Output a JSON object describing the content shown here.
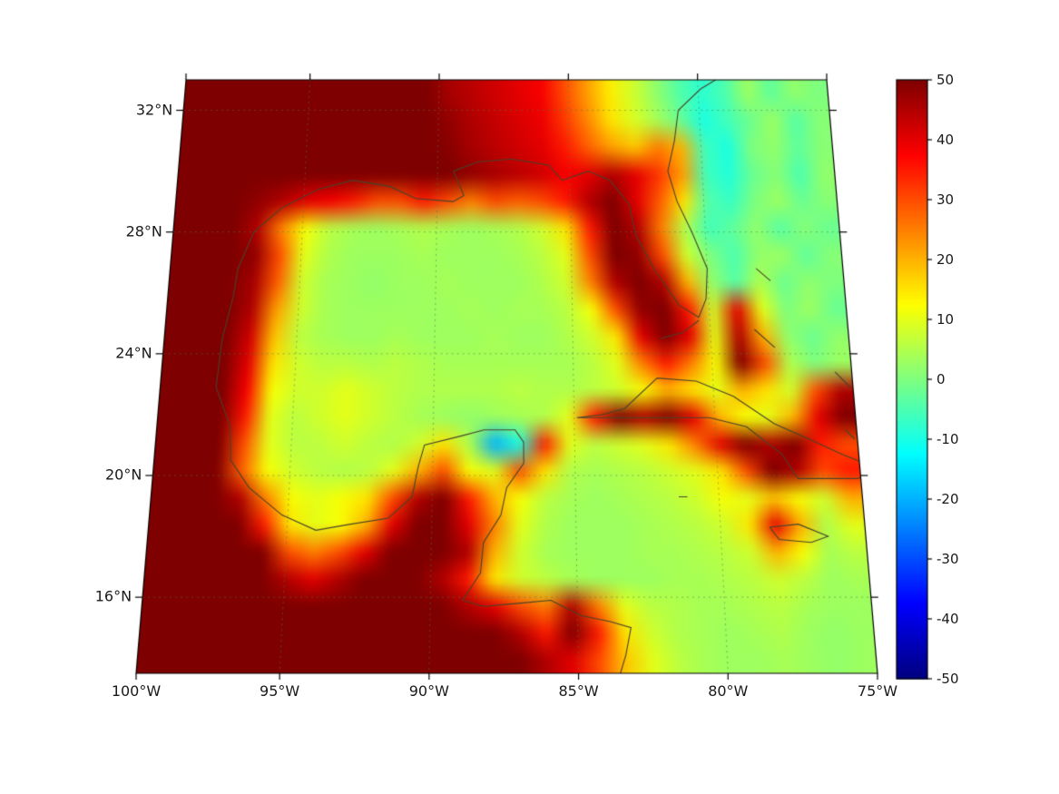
{
  "figure": {
    "background": "#ffffff"
  },
  "chart_data": {
    "type": "heatmap",
    "title": "",
    "colormap": "jet",
    "region": "Gulf of Mexico and Caribbean",
    "extent": {
      "lon_min": -99.8,
      "lon_max": -75.0,
      "lat_min": 13.5,
      "lat_max": 33.0
    },
    "x_axis": {
      "tick_labels": [
        "100°W",
        "95°W",
        "90°W",
        "85°W",
        "80°W",
        "75°W"
      ],
      "tick_values": [
        -100,
        -95,
        -90,
        -85,
        -80,
        -75
      ]
    },
    "y_axis": {
      "tick_labels": [
        "32°N",
        "28°N",
        "24°N",
        "20°N",
        "16°N"
      ],
      "tick_values": [
        32,
        28,
        24,
        20,
        16
      ]
    },
    "grid": {
      "lons": [
        -95,
        -90,
        -85,
        -80
      ],
      "lats": [
        16,
        20,
        24,
        28,
        32
      ],
      "style": "dashed"
    },
    "colorbar": {
      "min": -50,
      "max": 50,
      "tick_labels": [
        "50",
        "40",
        "30",
        "20",
        "10",
        "0",
        "-10",
        "-20",
        "-30",
        "-40",
        "-50"
      ],
      "tick_values": [
        50,
        40,
        30,
        20,
        10,
        0,
        -10,
        -20,
        -30,
        -40,
        -50
      ]
    },
    "grid_values": {
      "ncols": 28,
      "nrows": 22,
      "values": [
        [
          50,
          50,
          50,
          50,
          50,
          50,
          50,
          50,
          50,
          50,
          50,
          46,
          44,
          42,
          40,
          38,
          30,
          22,
          14,
          8,
          2,
          -4,
          -8,
          -5,
          3,
          -3,
          2,
          0
        ],
        [
          50,
          50,
          50,
          50,
          50,
          50,
          50,
          50,
          50,
          50,
          50,
          48,
          45,
          43,
          41,
          39,
          32,
          24,
          15,
          9,
          4,
          -2,
          -10,
          -6,
          -2,
          3,
          -4,
          1
        ],
        [
          50,
          50,
          50,
          50,
          50,
          50,
          50,
          50,
          50,
          50,
          50,
          49,
          46,
          44,
          42,
          40,
          35,
          28,
          22,
          18,
          25,
          20,
          -6,
          -10,
          0,
          2,
          -3,
          1
        ],
        [
          50,
          50,
          50,
          50,
          50,
          50,
          50,
          50,
          50,
          50,
          50,
          50,
          48,
          46,
          44,
          42,
          38,
          40,
          45,
          40,
          32,
          22,
          -6,
          -9,
          -2,
          1,
          -5,
          2
        ],
        [
          50,
          50,
          50,
          48,
          45,
          40,
          38,
          35,
          30,
          30,
          35,
          30,
          25,
          30,
          28,
          30,
          35,
          45,
          50,
          40,
          28,
          15,
          -4,
          -7,
          0,
          3,
          -2,
          1
        ],
        [
          50,
          50,
          50,
          45,
          25,
          12,
          6,
          4,
          3,
          4,
          5,
          4,
          3,
          4,
          5,
          8,
          15,
          35,
          50,
          45,
          25,
          5,
          -6,
          -3,
          2,
          -4,
          1,
          -2
        ],
        [
          50,
          50,
          50,
          48,
          30,
          10,
          5,
          3,
          3,
          3,
          4,
          3,
          3,
          3,
          4,
          6,
          10,
          30,
          50,
          48,
          30,
          8,
          0,
          -5,
          2,
          3,
          -3,
          1
        ],
        [
          50,
          50,
          50,
          46,
          28,
          8,
          4,
          3,
          2,
          3,
          3,
          4,
          3,
          3,
          3,
          5,
          8,
          25,
          45,
          50,
          45,
          20,
          2,
          -4,
          5,
          -2,
          2,
          0
        ],
        [
          50,
          50,
          50,
          45,
          22,
          8,
          4,
          3,
          3,
          3,
          3,
          3,
          4,
          3,
          4,
          4,
          6,
          12,
          30,
          48,
          50,
          35,
          8,
          40,
          10,
          0,
          3,
          -2
        ],
        [
          50,
          50,
          50,
          42,
          18,
          6,
          4,
          3,
          3,
          4,
          3,
          3,
          3,
          4,
          3,
          3,
          5,
          8,
          15,
          40,
          50,
          40,
          10,
          45,
          20,
          2,
          -2,
          2
        ],
        [
          50,
          50,
          50,
          40,
          15,
          8,
          6,
          6,
          5,
          6,
          5,
          4,
          4,
          4,
          4,
          4,
          4,
          6,
          10,
          25,
          35,
          25,
          12,
          50,
          30,
          5,
          0,
          3
        ],
        [
          50,
          50,
          50,
          38,
          12,
          8,
          8,
          10,
          8,
          6,
          5,
          5,
          5,
          5,
          6,
          5,
          5,
          6,
          8,
          12,
          20,
          15,
          10,
          20,
          15,
          8,
          30,
          45
        ],
        [
          50,
          50,
          50,
          35,
          10,
          6,
          8,
          10,
          8,
          6,
          4,
          3,
          2,
          3,
          4,
          5,
          10,
          35,
          50,
          45,
          50,
          40,
          20,
          12,
          10,
          20,
          40,
          50
        ],
        [
          50,
          50,
          50,
          30,
          10,
          6,
          6,
          8,
          6,
          5,
          8,
          15,
          5,
          -20,
          -10,
          35,
          10,
          6,
          8,
          10,
          15,
          25,
          40,
          50,
          45,
          50,
          35,
          30
        ],
        [
          50,
          50,
          50,
          28,
          12,
          8,
          6,
          5,
          6,
          10,
          20,
          30,
          12,
          10,
          30,
          15,
          5,
          4,
          5,
          6,
          8,
          10,
          15,
          30,
          50,
          45,
          30,
          35
        ],
        [
          50,
          50,
          50,
          45,
          25,
          12,
          10,
          12,
          15,
          30,
          45,
          50,
          35,
          20,
          12,
          6,
          4,
          3,
          4,
          5,
          6,
          8,
          12,
          10,
          18,
          12,
          8,
          20
        ],
        [
          50,
          50,
          50,
          50,
          35,
          15,
          10,
          12,
          20,
          40,
          50,
          50,
          40,
          25,
          10,
          5,
          3,
          3,
          3,
          4,
          5,
          6,
          8,
          15,
          40,
          20,
          5,
          10
        ],
        [
          50,
          50,
          50,
          50,
          50,
          30,
          25,
          30,
          40,
          50,
          50,
          50,
          45,
          20,
          8,
          4,
          3,
          3,
          3,
          4,
          4,
          5,
          6,
          8,
          20,
          12,
          4,
          6
        ],
        [
          50,
          50,
          50,
          50,
          50,
          45,
          40,
          45,
          50,
          50,
          50,
          45,
          35,
          15,
          8,
          6,
          4,
          3,
          3,
          3,
          4,
          4,
          5,
          6,
          8,
          6,
          3,
          4
        ],
        [
          50,
          50,
          50,
          50,
          50,
          50,
          50,
          50,
          50,
          50,
          50,
          50,
          45,
          40,
          30,
          25,
          45,
          25,
          10,
          6,
          5,
          4,
          4,
          5,
          6,
          4,
          3,
          3
        ],
        [
          50,
          50,
          50,
          50,
          50,
          50,
          50,
          50,
          50,
          50,
          50,
          50,
          50,
          50,
          45,
          35,
          50,
          35,
          15,
          8,
          5,
          4,
          3,
          4,
          5,
          3,
          2,
          3
        ],
        [
          50,
          50,
          50,
          50,
          50,
          50,
          50,
          50,
          50,
          50,
          50,
          50,
          50,
          50,
          50,
          45,
          40,
          30,
          18,
          10,
          6,
          4,
          3,
          3,
          4,
          3,
          2,
          3
        ]
      ]
    },
    "coastlines": [
      [
        [
          -97.4,
          25.9
        ],
        [
          -97.3,
          26.8
        ],
        [
          -96.8,
          28.0
        ],
        [
          -95.8,
          28.8
        ],
        [
          -94.5,
          29.4
        ],
        [
          -93.2,
          29.7
        ],
        [
          -91.8,
          29.5
        ],
        [
          -90.8,
          29.1
        ],
        [
          -89.4,
          29.0
        ],
        [
          -89.0,
          29.2
        ],
        [
          -89.4,
          30.0
        ],
        [
          -88.5,
          30.3
        ],
        [
          -87.2,
          30.4
        ],
        [
          -85.8,
          30.2
        ],
        [
          -85.3,
          29.7
        ],
        [
          -84.3,
          30.0
        ],
        [
          -83.5,
          29.7
        ],
        [
          -82.8,
          28.9
        ],
        [
          -82.6,
          27.9
        ],
        [
          -81.9,
          26.7
        ],
        [
          -81.1,
          25.6
        ],
        [
          -80.4,
          25.2
        ],
        [
          -80.1,
          25.8
        ],
        [
          -80.0,
          26.8
        ],
        [
          -80.5,
          28.0
        ],
        [
          -81.0,
          29.0
        ],
        [
          -81.3,
          30.0
        ],
        [
          -81.0,
          31.0
        ],
        [
          -80.8,
          32.0
        ],
        [
          -79.9,
          32.7
        ],
        [
          -79.3,
          33.0
        ]
      ],
      [
        [
          -97.4,
          25.9
        ],
        [
          -97.7,
          24.5
        ],
        [
          -97.8,
          22.9
        ],
        [
          -97.2,
          21.6
        ],
        [
          -97.1,
          20.5
        ],
        [
          -96.4,
          19.6
        ],
        [
          -95.2,
          18.7
        ],
        [
          -94.0,
          18.2
        ],
        [
          -92.8,
          18.4
        ],
        [
          -91.5,
          18.6
        ],
        [
          -90.7,
          19.3
        ],
        [
          -90.5,
          20.3
        ],
        [
          -90.3,
          21.0
        ],
        [
          -89.0,
          21.3
        ],
        [
          -88.2,
          21.5
        ],
        [
          -87.1,
          21.5
        ],
        [
          -86.8,
          21.1
        ],
        [
          -86.8,
          20.4
        ],
        [
          -87.4,
          19.6
        ],
        [
          -87.6,
          18.7
        ],
        [
          -88.2,
          17.8
        ],
        [
          -88.3,
          16.8
        ],
        [
          -88.9,
          15.9
        ],
        [
          -88.2,
          15.7
        ],
        [
          -87.0,
          15.8
        ],
        [
          -85.9,
          15.9
        ],
        [
          -84.9,
          15.4
        ],
        [
          -83.9,
          15.2
        ],
        [
          -83.2,
          15.0
        ],
        [
          -83.4,
          14.1
        ],
        [
          -83.6,
          13.5
        ]
      ],
      [
        [
          -84.9,
          21.9
        ],
        [
          -84.0,
          22.0
        ],
        [
          -83.2,
          22.2
        ],
        [
          -82.0,
          23.2
        ],
        [
          -80.6,
          23.1
        ],
        [
          -79.3,
          22.6
        ],
        [
          -77.9,
          21.7
        ],
        [
          -76.5,
          21.1
        ],
        [
          -75.6,
          20.7
        ],
        [
          -74.3,
          20.2
        ],
        [
          -75.1,
          19.9
        ],
        [
          -76.3,
          19.9
        ],
        [
          -77.2,
          19.9
        ],
        [
          -77.7,
          20.7
        ],
        [
          -78.9,
          21.6
        ],
        [
          -80.2,
          21.9
        ],
        [
          -81.8,
          21.9
        ],
        [
          -83.1,
          21.9
        ],
        [
          -84.2,
          21.9
        ],
        [
          -84.9,
          21.9
        ]
      ],
      [
        [
          -80.4,
          25.1
        ],
        [
          -81.0,
          24.7
        ],
        [
          -81.8,
          24.5
        ]
      ],
      [
        [
          -78.3,
          18.3
        ],
        [
          -77.3,
          18.4
        ],
        [
          -76.3,
          18.0
        ],
        [
          -76.9,
          17.8
        ],
        [
          -78.0,
          17.9
        ],
        [
          -78.3,
          18.3
        ]
      ],
      [
        [
          -78.2,
          26.8
        ],
        [
          -77.7,
          26.4
        ]
      ],
      [
        [
          -78.4,
          24.8
        ],
        [
          -77.7,
          24.2
        ]
      ],
      [
        [
          -75.6,
          23.4
        ],
        [
          -75.1,
          22.9
        ]
      ],
      [
        [
          -75.4,
          21.5
        ],
        [
          -75.1,
          21.2
        ]
      ],
      [
        [
          -81.4,
          19.3
        ],
        [
          -81.1,
          19.3
        ]
      ]
    ]
  }
}
